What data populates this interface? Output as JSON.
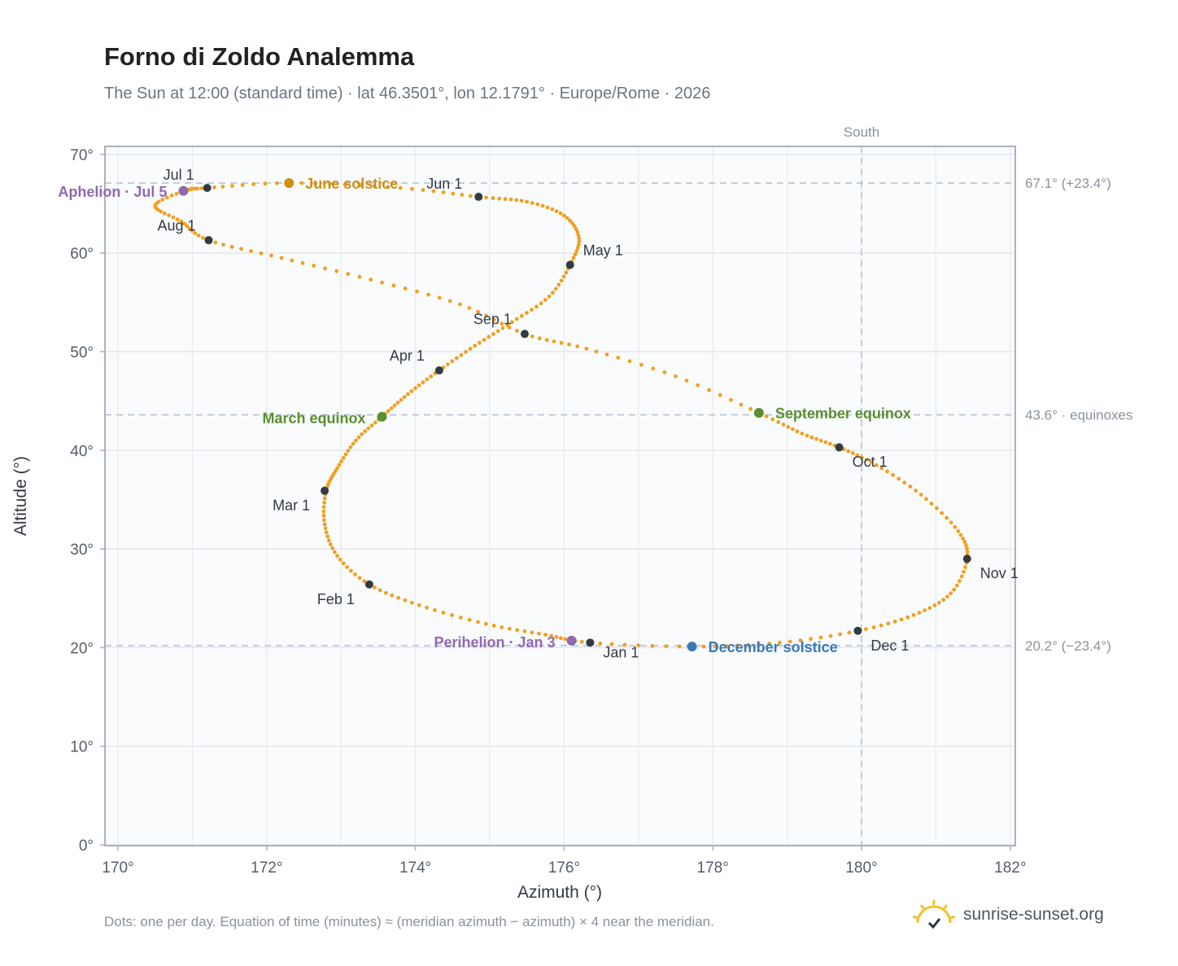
{
  "chart_data": {
    "type": "scatter",
    "title": "Forno di Zoldo Analemma",
    "subtitle": "The Sun at 12:00 (standard time) · lat 46.3501°, lon 12.1791° · Europe/Rome · 2026",
    "xlabel": "Azimuth (°)",
    "ylabel": "Altitude (°)",
    "xlim": [
      169.8,
      182.1
    ],
    "ylim": [
      0,
      71
    ],
    "grid": true,
    "x_ticks": [
      "170°",
      "172°",
      "174°",
      "176°",
      "178°",
      "180°",
      "182°"
    ],
    "y_ticks": [
      "0°",
      "10°",
      "20°",
      "30°",
      "40°",
      "50°",
      "60°",
      "70°"
    ],
    "daily_points": [
      [
        176.35,
        20.5
      ],
      [
        175.75,
        21.3
      ],
      [
        174.95,
        22.4
      ],
      [
        174.05,
        24.3
      ],
      [
        173.38,
        26.4
      ],
      [
        172.95,
        29.3
      ],
      [
        172.78,
        32.5
      ],
      [
        172.8,
        35.9
      ],
      [
        172.95,
        38.2
      ],
      [
        173.2,
        41.0
      ],
      [
        173.55,
        43.4
      ],
      [
        173.9,
        45.7
      ],
      [
        174.32,
        48.1
      ],
      [
        174.8,
        50.6
      ],
      [
        175.3,
        53.0
      ],
      [
        175.8,
        55.6
      ],
      [
        176.08,
        58.8
      ],
      [
        176.2,
        61.5
      ],
      [
        176.0,
        63.8
      ],
      [
        175.5,
        65.2
      ],
      [
        174.85,
        65.7
      ],
      [
        173.8,
        66.6
      ],
      [
        172.3,
        67.1
      ],
      [
        171.2,
        66.6
      ],
      [
        170.9,
        66.3
      ],
      [
        170.5,
        64.8
      ],
      [
        170.85,
        63.2
      ],
      [
        171.22,
        61.3
      ],
      [
        172.2,
        59.5
      ],
      [
        173.4,
        57.3
      ],
      [
        174.6,
        54.8
      ],
      [
        175.47,
        51.8
      ],
      [
        176.3,
        50.3
      ],
      [
        177.5,
        47.5
      ],
      [
        178.62,
        43.8
      ],
      [
        179.2,
        41.7
      ],
      [
        179.7,
        40.3
      ],
      [
        180.2,
        38.5
      ],
      [
        180.8,
        35.5
      ],
      [
        181.3,
        31.8
      ],
      [
        181.42,
        29.0
      ],
      [
        181.2,
        25.5
      ],
      [
        180.7,
        23.3
      ],
      [
        179.95,
        21.7
      ],
      [
        178.9,
        20.5
      ],
      [
        177.72,
        20.1
      ],
      [
        176.35,
        20.5
      ]
    ],
    "month_markers": [
      {
        "label": "Jan 1",
        "x": 176.35,
        "y": 20.5
      },
      {
        "label": "Feb 1",
        "x": 173.38,
        "y": 26.4
      },
      {
        "label": "Mar 1",
        "x": 172.78,
        "y": 35.9
      },
      {
        "label": "Apr 1",
        "x": 174.32,
        "y": 48.1
      },
      {
        "label": "May 1",
        "x": 176.08,
        "y": 58.8
      },
      {
        "label": "Jun 1",
        "x": 174.85,
        "y": 65.7
      },
      {
        "label": "Jul 1",
        "x": 171.2,
        "y": 66.6
      },
      {
        "label": "Aug 1",
        "x": 171.22,
        "y": 61.3
      },
      {
        "label": "Sep 1",
        "x": 175.47,
        "y": 51.8
      },
      {
        "label": "Oct 1",
        "x": 179.7,
        "y": 40.3
      },
      {
        "label": "Nov 1",
        "x": 181.42,
        "y": 29.0
      },
      {
        "label": "Dec 1",
        "x": 179.95,
        "y": 21.7
      }
    ],
    "events": [
      {
        "label": "June solstice",
        "x": 172.3,
        "y": 67.1,
        "color": "#d18f0f"
      },
      {
        "label": "March equinox",
        "x": 173.55,
        "y": 43.4,
        "color": "#5a8f2f"
      },
      {
        "label": "September equinox",
        "x": 178.62,
        "y": 43.8,
        "color": "#5a8f2f"
      },
      {
        "label": "December solstice",
        "x": 177.72,
        "y": 20.1,
        "color": "#3a78b8"
      },
      {
        "label": "Aphelion · Jul 5",
        "x": 170.88,
        "y": 66.3,
        "color": "#9068b0"
      },
      {
        "label": "Perihelion · Jan 3",
        "x": 176.1,
        "y": 20.7,
        "color": "#9068b0"
      }
    ],
    "reference_lines": [
      {
        "y": 67.1,
        "label": "67.1° (+23.4°)"
      },
      {
        "y": 43.6,
        "label": "43.6° · equinoxes"
      },
      {
        "y": 20.2,
        "label": "20.2° (−23.4°)"
      }
    ],
    "meridian": {
      "x": 180,
      "label": "South"
    },
    "colors": {
      "curve": "#f0a020",
      "marker": "#333a44",
      "grid": "#e3e8ee",
      "plot_bg": "#f9fbfd",
      "axis": "#a9b3bf"
    }
  },
  "footer": {
    "note": "Dots: one per day. Equation of time (minutes) ≈ (meridian azimuth − azimuth) × 4 near the meridian.",
    "brand": "sunrise-sunset.org"
  }
}
